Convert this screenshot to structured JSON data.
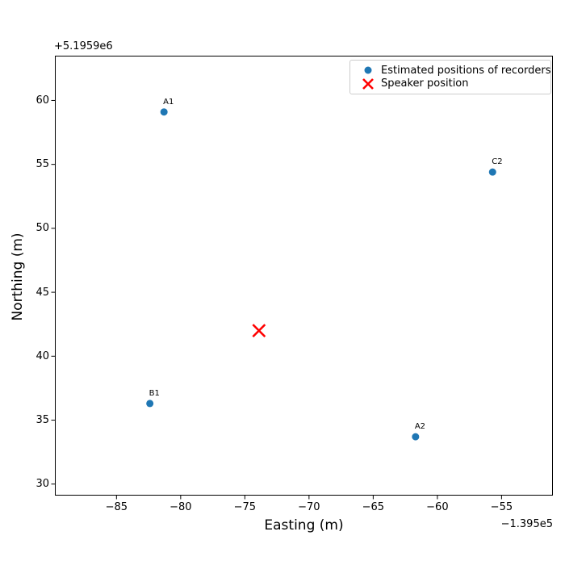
{
  "chart_data": {
    "type": "scatter",
    "xlabel": "Easting (m)",
    "ylabel": "Northing (m)",
    "x_offset_text": "−1.395e5",
    "y_offset_text": "+5.1959e6",
    "xlim": [
      -89.8,
      -51.0
    ],
    "ylim": [
      29.1,
      63.5
    ],
    "x_ticks": [
      -85,
      -80,
      -75,
      -70,
      -65,
      -60,
      -55
    ],
    "x_tick_labels": [
      "−85",
      "−80",
      "−75",
      "−70",
      "−65",
      "−60",
      "−55"
    ],
    "y_ticks": [
      30,
      35,
      40,
      45,
      50,
      55,
      60
    ],
    "y_tick_labels": [
      "30",
      "35",
      "40",
      "45",
      "50",
      "55",
      "60"
    ],
    "grid": false,
    "legend_position": "upper right",
    "series": [
      {
        "name": "Estimated positions of recorders",
        "marker": "circle",
        "color": "#1f77b4",
        "points": [
          {
            "label": "A1",
            "x": -81.3,
            "y": 59.1
          },
          {
            "label": "C2",
            "x": -55.7,
            "y": 54.4
          },
          {
            "label": "B1",
            "x": -82.4,
            "y": 36.3
          },
          {
            "label": "A2",
            "x": -61.7,
            "y": 33.7
          }
        ]
      },
      {
        "name": "Speaker position",
        "marker": "x",
        "color": "#ff0000",
        "points": [
          {
            "label": "",
            "x": -73.9,
            "y": 42.0
          }
        ]
      }
    ]
  }
}
